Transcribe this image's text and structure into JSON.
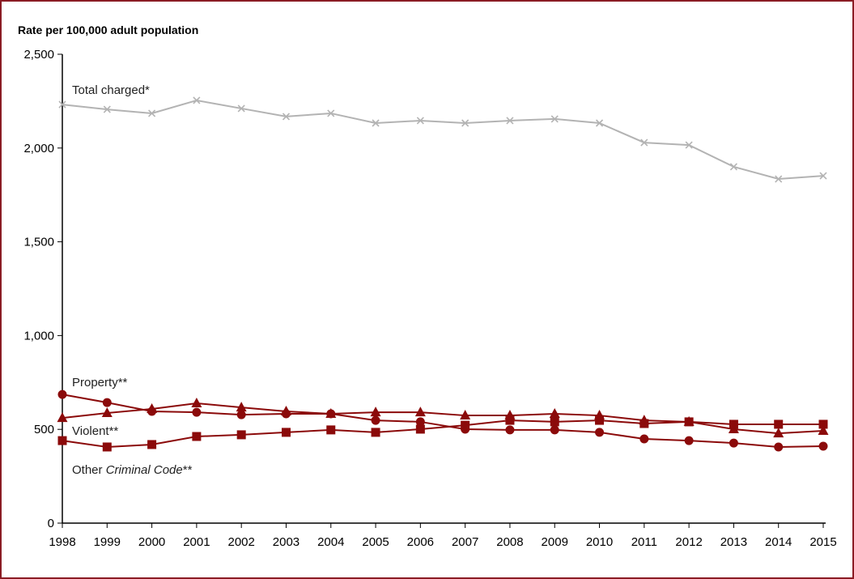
{
  "chart_data": {
    "type": "line",
    "title": "",
    "ylabel": "Rate per 100,000 adult population",
    "xlabel": "",
    "ylim": [
      0,
      2500
    ],
    "yticks": [
      "0",
      "500",
      "1,000",
      "1,500",
      "2,000",
      "2,500"
    ],
    "yticks_values": [
      0,
      500,
      1000,
      1500,
      2000,
      2500
    ],
    "grid": false,
    "categories": [
      "1998",
      "1999",
      "2000",
      "2001",
      "2002",
      "2003",
      "2004",
      "2005",
      "2006",
      "2007",
      "2008",
      "2009",
      "2010",
      "2011",
      "2012",
      "2013",
      "2014",
      "2015"
    ],
    "series": [
      {
        "name": "Total charged*",
        "marker": "x",
        "color": "#b3b3b3",
        "values": [
          2232,
          2206,
          2185,
          2254,
          2211,
          2168,
          2185,
          2133,
          2146,
          2133,
          2146,
          2155,
          2133,
          2029,
          2016,
          1900,
          1835,
          1852
        ]
      },
      {
        "name": "Property**",
        "marker": "circle",
        "color": "#8b0a0a",
        "values": [
          686,
          643,
          596,
          591,
          578,
          583,
          583,
          548,
          540,
          501,
          497,
          497,
          484,
          449,
          440,
          427,
          406,
          410
        ]
      },
      {
        "name": "Violent**",
        "marker": "triangle",
        "color": "#8b0a0a",
        "values": [
          561,
          587,
          609,
          639,
          617,
          596,
          583,
          591,
          591,
          574,
          574,
          583,
          574,
          548,
          540,
          501,
          479,
          492
        ]
      },
      {
        "name_prefix": "Other ",
        "name_italic": "Criminal Code",
        "name_suffix": "**",
        "marker": "square",
        "color": "#8b0a0a",
        "values": [
          440,
          406,
          419,
          462,
          471,
          484,
          497,
          484,
          501,
          522,
          548,
          540,
          548,
          531,
          540,
          527,
          527,
          527
        ]
      }
    ]
  }
}
